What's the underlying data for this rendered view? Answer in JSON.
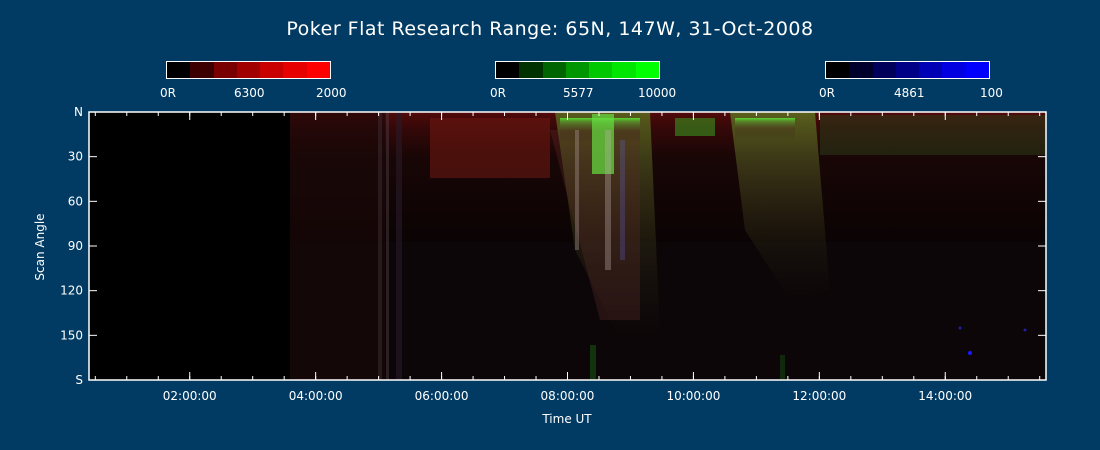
{
  "title": "Poker Flat Research Range: 65N, 147W, 31-Oct-2008",
  "colorbars": [
    {
      "name": "6300",
      "min": "0R",
      "mid": "6300",
      "max": "2000",
      "colors": [
        "#000000",
        "#3c0000",
        "#780000",
        "#a00000",
        "#c80000",
        "#e60000",
        "#ff0000"
      ]
    },
    {
      "name": "5577",
      "min": "0R",
      "mid": "5577",
      "max": "10000",
      "colors": [
        "#000000",
        "#003200",
        "#006400",
        "#009600",
        "#00c800",
        "#00e600",
        "#00ff00"
      ]
    },
    {
      "name": "4861",
      "min": "0R",
      "mid": "4861",
      "max": "100",
      "colors": [
        "#000000",
        "#00002d",
        "#00005a",
        "#000087",
        "#0000b4",
        "#0000e1",
        "#0000ff"
      ]
    }
  ],
  "chart_data": {
    "type": "heatmap",
    "title": "Poker Flat Research Range: 65N, 147W, 31-Oct-2008",
    "xlabel": "Time UT",
    "ylabel": "Scan Angle",
    "x_ticks": [
      "02:00:00",
      "04:00:00",
      "06:00:00",
      "08:00:00",
      "10:00:00",
      "12:00:00",
      "14:00:00"
    ],
    "x_range_hours": [
      0.4,
      15.6
    ],
    "y_ticks": [
      "N",
      "30",
      "60",
      "90",
      "120",
      "150",
      "S"
    ],
    "y_tick_values": [
      0,
      30,
      60,
      90,
      120,
      150,
      180
    ],
    "y_range": [
      0,
      180
    ],
    "data_start_hours": 3.55,
    "features": [
      {
        "kind": "band",
        "channel": "red",
        "t0": 3.55,
        "t1": 15.6,
        "a0": 0,
        "a1": 30,
        "intensity": 0.35
      },
      {
        "kind": "arc",
        "channel": "green",
        "t": 8.15,
        "a0": 0,
        "a1": 20,
        "intensity": 0.9
      },
      {
        "kind": "arc",
        "channel": "green",
        "t": 10.7,
        "a0": 0,
        "a1": 15,
        "intensity": 0.6
      },
      {
        "kind": "arc",
        "channel": "green",
        "t": 11.3,
        "a0": 0,
        "a1": 25,
        "intensity": 0.7
      }
    ]
  }
}
